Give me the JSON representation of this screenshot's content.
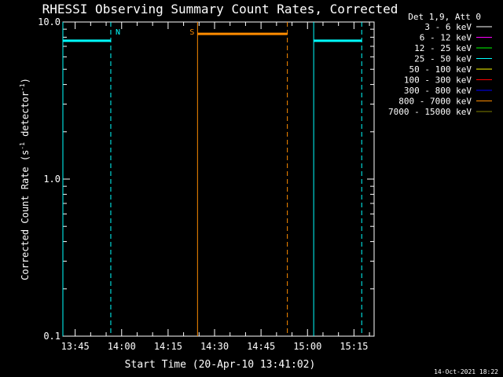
{
  "chart_data": {
    "type": "line",
    "title": "RHESSI Observing Summary Count Rates, Corrected",
    "xlabel": "Start Time (20-Apr-10 13:41:02)",
    "ylabel": "Corrected Count Rate (s",
    "ylabel_sup": "-1",
    "ylabel_mid": " detector",
    "ylabel_sup2": "-1",
    "ylabel_end": ")",
    "yscale": "log",
    "ylim": [
      0.1,
      10.0
    ],
    "xlim_minutes": [
      13.683,
      14.0
    ],
    "x_range": [
      "13:41:02",
      "15:21:30"
    ],
    "x_ticks": [
      "13:45",
      "14:00",
      "14:15",
      "14:30",
      "14:45",
      "15:00",
      "15:15"
    ],
    "y_ticks": [
      "0.1",
      "1.0",
      "10.0"
    ],
    "legend_placement": "top-right",
    "legend_header": "Det 1,9, Att 0",
    "legend": [
      {
        "label": "3 - 6 keV",
        "color": "#ffffff"
      },
      {
        "label": "6 - 12 keV",
        "color": "#ff00ff"
      },
      {
        "label": "12 - 25 keV",
        "color": "#00ff00"
      },
      {
        "label": "25 - 50 keV",
        "color": "#00ffff"
      },
      {
        "label": "50 - 100 keV",
        "color": "#ffff00"
      },
      {
        "label": "100 - 300 keV",
        "color": "#ff0000"
      },
      {
        "label": "300 - 800 keV",
        "color": "#0000ff"
      },
      {
        "label": "800 - 7000 keV",
        "color": "#ff8c00"
      },
      {
        "label": "7000 - 15000 keV",
        "color": "#808000"
      }
    ],
    "series": [
      {
        "segments": [
          [
            "13:41:02",
            "13:56:30"
          ],
          [
            "15:02:00",
            "15:17:30"
          ]
        ],
        "value": 7.6,
        "color": "#00ffff"
      },
      {
        "segments": [
          [
            "14:24:30",
            "14:53:30"
          ]
        ],
        "value": 8.4,
        "color": "#ff8c00"
      }
    ],
    "markers": [
      {
        "time": "13:41:02",
        "style": "solid",
        "color": "#00ffff"
      },
      {
        "time": "13:56:30",
        "style": "dashed",
        "color": "#00ffff",
        "label": "N"
      },
      {
        "time": "14:24:30",
        "style": "solid",
        "color": "#ff8c00",
        "label": "S"
      },
      {
        "time": "14:53:30",
        "style": "dashed",
        "color": "#ff8c00"
      },
      {
        "time": "15:02:00",
        "style": "solid",
        "color": "#00ffff"
      },
      {
        "time": "15:17:30",
        "style": "dashed",
        "color": "#00ffff"
      }
    ],
    "footer_date": "14-Oct-2021 18:22"
  }
}
